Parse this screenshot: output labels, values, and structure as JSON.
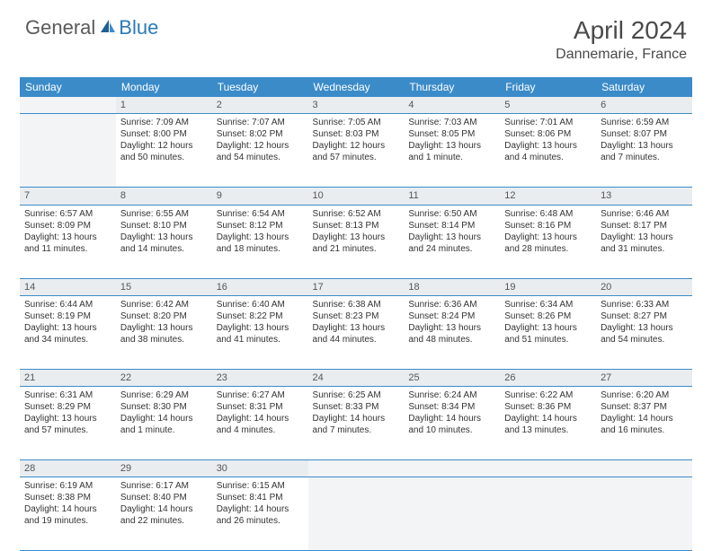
{
  "brand": {
    "general": "General",
    "blue": "Blue"
  },
  "title": "April 2024",
  "location": "Dannemarie, France",
  "colors": {
    "header_bg": "#3b8bc9",
    "header_text": "#ffffff",
    "daynum_bg": "#e9edf0",
    "empty_bg": "#f2f4f6",
    "row_border": "#3b8bc9",
    "text": "#333333",
    "logo_gray": "#5a5a5a",
    "logo_blue": "#2a7ab9"
  },
  "weekdays": [
    "Sunday",
    "Monday",
    "Tuesday",
    "Wednesday",
    "Thursday",
    "Friday",
    "Saturday"
  ],
  "weeks": [
    {
      "nums": [
        "",
        "1",
        "2",
        "3",
        "4",
        "5",
        "6"
      ],
      "cells": [
        null,
        {
          "sr": "Sunrise: 7:09 AM",
          "ss": "Sunset: 8:00 PM",
          "d1": "Daylight: 12 hours",
          "d2": "and 50 minutes."
        },
        {
          "sr": "Sunrise: 7:07 AM",
          "ss": "Sunset: 8:02 PM",
          "d1": "Daylight: 12 hours",
          "d2": "and 54 minutes."
        },
        {
          "sr": "Sunrise: 7:05 AM",
          "ss": "Sunset: 8:03 PM",
          "d1": "Daylight: 12 hours",
          "d2": "and 57 minutes."
        },
        {
          "sr": "Sunrise: 7:03 AM",
          "ss": "Sunset: 8:05 PM",
          "d1": "Daylight: 13 hours",
          "d2": "and 1 minute."
        },
        {
          "sr": "Sunrise: 7:01 AM",
          "ss": "Sunset: 8:06 PM",
          "d1": "Daylight: 13 hours",
          "d2": "and 4 minutes."
        },
        {
          "sr": "Sunrise: 6:59 AM",
          "ss": "Sunset: 8:07 PM",
          "d1": "Daylight: 13 hours",
          "d2": "and 7 minutes."
        }
      ]
    },
    {
      "nums": [
        "7",
        "8",
        "9",
        "10",
        "11",
        "12",
        "13"
      ],
      "cells": [
        {
          "sr": "Sunrise: 6:57 AM",
          "ss": "Sunset: 8:09 PM",
          "d1": "Daylight: 13 hours",
          "d2": "and 11 minutes."
        },
        {
          "sr": "Sunrise: 6:55 AM",
          "ss": "Sunset: 8:10 PM",
          "d1": "Daylight: 13 hours",
          "d2": "and 14 minutes."
        },
        {
          "sr": "Sunrise: 6:54 AM",
          "ss": "Sunset: 8:12 PM",
          "d1": "Daylight: 13 hours",
          "d2": "and 18 minutes."
        },
        {
          "sr": "Sunrise: 6:52 AM",
          "ss": "Sunset: 8:13 PM",
          "d1": "Daylight: 13 hours",
          "d2": "and 21 minutes."
        },
        {
          "sr": "Sunrise: 6:50 AM",
          "ss": "Sunset: 8:14 PM",
          "d1": "Daylight: 13 hours",
          "d2": "and 24 minutes."
        },
        {
          "sr": "Sunrise: 6:48 AM",
          "ss": "Sunset: 8:16 PM",
          "d1": "Daylight: 13 hours",
          "d2": "and 28 minutes."
        },
        {
          "sr": "Sunrise: 6:46 AM",
          "ss": "Sunset: 8:17 PM",
          "d1": "Daylight: 13 hours",
          "d2": "and 31 minutes."
        }
      ]
    },
    {
      "nums": [
        "14",
        "15",
        "16",
        "17",
        "18",
        "19",
        "20"
      ],
      "cells": [
        {
          "sr": "Sunrise: 6:44 AM",
          "ss": "Sunset: 8:19 PM",
          "d1": "Daylight: 13 hours",
          "d2": "and 34 minutes."
        },
        {
          "sr": "Sunrise: 6:42 AM",
          "ss": "Sunset: 8:20 PM",
          "d1": "Daylight: 13 hours",
          "d2": "and 38 minutes."
        },
        {
          "sr": "Sunrise: 6:40 AM",
          "ss": "Sunset: 8:22 PM",
          "d1": "Daylight: 13 hours",
          "d2": "and 41 minutes."
        },
        {
          "sr": "Sunrise: 6:38 AM",
          "ss": "Sunset: 8:23 PM",
          "d1": "Daylight: 13 hours",
          "d2": "and 44 minutes."
        },
        {
          "sr": "Sunrise: 6:36 AM",
          "ss": "Sunset: 8:24 PM",
          "d1": "Daylight: 13 hours",
          "d2": "and 48 minutes."
        },
        {
          "sr": "Sunrise: 6:34 AM",
          "ss": "Sunset: 8:26 PM",
          "d1": "Daylight: 13 hours",
          "d2": "and 51 minutes."
        },
        {
          "sr": "Sunrise: 6:33 AM",
          "ss": "Sunset: 8:27 PM",
          "d1": "Daylight: 13 hours",
          "d2": "and 54 minutes."
        }
      ]
    },
    {
      "nums": [
        "21",
        "22",
        "23",
        "24",
        "25",
        "26",
        "27"
      ],
      "cells": [
        {
          "sr": "Sunrise: 6:31 AM",
          "ss": "Sunset: 8:29 PM",
          "d1": "Daylight: 13 hours",
          "d2": "and 57 minutes."
        },
        {
          "sr": "Sunrise: 6:29 AM",
          "ss": "Sunset: 8:30 PM",
          "d1": "Daylight: 14 hours",
          "d2": "and 1 minute."
        },
        {
          "sr": "Sunrise: 6:27 AM",
          "ss": "Sunset: 8:31 PM",
          "d1": "Daylight: 14 hours",
          "d2": "and 4 minutes."
        },
        {
          "sr": "Sunrise: 6:25 AM",
          "ss": "Sunset: 8:33 PM",
          "d1": "Daylight: 14 hours",
          "d2": "and 7 minutes."
        },
        {
          "sr": "Sunrise: 6:24 AM",
          "ss": "Sunset: 8:34 PM",
          "d1": "Daylight: 14 hours",
          "d2": "and 10 minutes."
        },
        {
          "sr": "Sunrise: 6:22 AM",
          "ss": "Sunset: 8:36 PM",
          "d1": "Daylight: 14 hours",
          "d2": "and 13 minutes."
        },
        {
          "sr": "Sunrise: 6:20 AM",
          "ss": "Sunset: 8:37 PM",
          "d1": "Daylight: 14 hours",
          "d2": "and 16 minutes."
        }
      ]
    },
    {
      "nums": [
        "28",
        "29",
        "30",
        "",
        "",
        "",
        ""
      ],
      "cells": [
        {
          "sr": "Sunrise: 6:19 AM",
          "ss": "Sunset: 8:38 PM",
          "d1": "Daylight: 14 hours",
          "d2": "and 19 minutes."
        },
        {
          "sr": "Sunrise: 6:17 AM",
          "ss": "Sunset: 8:40 PM",
          "d1": "Daylight: 14 hours",
          "d2": "and 22 minutes."
        },
        {
          "sr": "Sunrise: 6:15 AM",
          "ss": "Sunset: 8:41 PM",
          "d1": "Daylight: 14 hours",
          "d2": "and 26 minutes."
        },
        null,
        null,
        null,
        null
      ]
    }
  ]
}
